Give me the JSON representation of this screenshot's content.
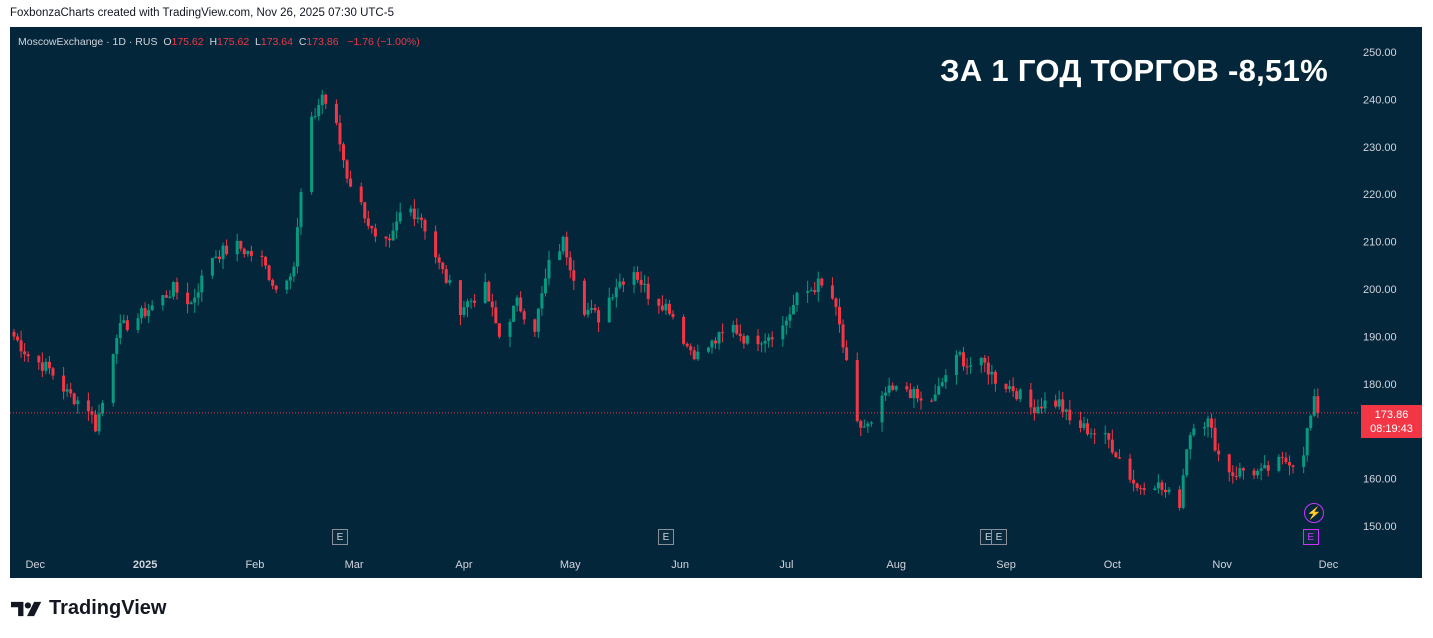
{
  "header": {
    "attribution": "FoxbonzaCharts created with TradingView.com, Nov 26, 2025 07:30 UTC-5"
  },
  "legend": {
    "symbol": "MoscowExchange · 1D · RUS",
    "open_label": "O",
    "open": "175.62",
    "high_label": "H",
    "high": "175.62",
    "low_label": "L",
    "low": "173.64",
    "close_label": "C",
    "close": "173.86",
    "change": "−1.76 (−1.00%)"
  },
  "headline": "ЗА 1 ГОД ТОРГОВ -8,51%",
  "price_badge": {
    "price": "173.86",
    "countdown": "08:19:43"
  },
  "earnings_marker": "E",
  "brand": {
    "name": "TradingView"
  },
  "colors": {
    "background": "#04263a",
    "up": "#089981",
    "down": "#f23645",
    "text": "#d1d4dc"
  },
  "icons": [
    "tradingview-logo-icon",
    "lightning-icon"
  ],
  "chart_data": {
    "type": "candlestick",
    "title": "",
    "xlabel": "",
    "ylabel": "",
    "ylim": [
      145,
      252
    ],
    "y_ticks": [
      "250.00",
      "240.00",
      "230.00",
      "220.00",
      "210.00",
      "200.00",
      "190.00",
      "180.00",
      "170.00",
      "160.00",
      "150.00"
    ],
    "x_ticks": [
      "Dec",
      "2025",
      "Feb",
      "Mar",
      "Apr",
      "May",
      "Jun",
      "Jul",
      "Aug",
      "Sep",
      "Oct",
      "Nov",
      "Dec"
    ],
    "grid": false,
    "last_price": 173.86,
    "close_series": [
      {
        "d": "2024-11-25",
        "c": 190
      },
      {
        "d": "2024-11-29",
        "c": 186
      },
      {
        "d": "2024-12-05",
        "c": 183
      },
      {
        "d": "2024-12-10",
        "c": 178
      },
      {
        "d": "2024-12-16",
        "c": 175
      },
      {
        "d": "2024-12-18",
        "c": 171
      },
      {
        "d": "2024-12-20",
        "c": 176
      },
      {
        "d": "2024-12-24",
        "c": 191
      },
      {
        "d": "2024-12-30",
        "c": 194
      },
      {
        "d": "2025-01-09",
        "c": 200
      },
      {
        "d": "2025-01-14",
        "c": 197
      },
      {
        "d": "2025-01-20",
        "c": 207
      },
      {
        "d": "2025-01-27",
        "c": 209
      },
      {
        "d": "2025-02-03",
        "c": 206
      },
      {
        "d": "2025-02-07",
        "c": 200
      },
      {
        "d": "2025-02-12",
        "c": 205
      },
      {
        "d": "2025-02-14",
        "c": 220
      },
      {
        "d": "2025-02-17",
        "c": 235
      },
      {
        "d": "2025-02-20",
        "c": 241
      },
      {
        "d": "2025-02-24",
        "c": 234
      },
      {
        "d": "2025-02-27",
        "c": 224
      },
      {
        "d": "2025-03-04",
        "c": 216
      },
      {
        "d": "2025-03-07",
        "c": 210
      },
      {
        "d": "2025-03-11",
        "c": 209
      },
      {
        "d": "2025-03-15",
        "c": 218
      },
      {
        "d": "2025-03-20",
        "c": 215
      },
      {
        "d": "2025-03-25",
        "c": 205
      },
      {
        "d": "2025-03-31",
        "c": 196
      },
      {
        "d": "2025-04-07",
        "c": 200
      },
      {
        "d": "2025-04-11",
        "c": 190
      },
      {
        "d": "2025-04-16",
        "c": 197
      },
      {
        "d": "2025-04-21",
        "c": 192
      },
      {
        "d": "2025-04-25",
        "c": 205
      },
      {
        "d": "2025-04-29",
        "c": 210
      },
      {
        "d": "2025-05-05",
        "c": 196
      },
      {
        "d": "2025-05-09",
        "c": 194
      },
      {
        "d": "2025-05-14",
        "c": 201
      },
      {
        "d": "2025-05-19",
        "c": 204
      },
      {
        "d": "2025-05-23",
        "c": 199
      },
      {
        "d": "2025-05-29",
        "c": 196
      },
      {
        "d": "2025-06-03",
        "c": 188
      },
      {
        "d": "2025-06-06",
        "c": 186
      },
      {
        "d": "2025-06-11",
        "c": 189
      },
      {
        "d": "2025-06-16",
        "c": 192
      },
      {
        "d": "2025-06-20",
        "c": 189
      },
      {
        "d": "2025-06-25",
        "c": 190
      },
      {
        "d": "2025-06-30",
        "c": 192
      },
      {
        "d": "2025-07-04",
        "c": 198
      },
      {
        "d": "2025-07-08",
        "c": 200
      },
      {
        "d": "2025-07-10",
        "c": 201
      },
      {
        "d": "2025-07-14",
        "c": 198
      },
      {
        "d": "2025-07-16",
        "c": 192
      },
      {
        "d": "2025-07-21",
        "c": 171
      },
      {
        "d": "2025-07-25",
        "c": 171
      },
      {
        "d": "2025-07-29",
        "c": 178
      },
      {
        "d": "2025-08-04",
        "c": 179
      },
      {
        "d": "2025-08-08",
        "c": 176
      },
      {
        "d": "2025-08-12",
        "c": 177
      },
      {
        "d": "2025-08-15",
        "c": 182
      },
      {
        "d": "2025-08-19",
        "c": 186
      },
      {
        "d": "2025-08-21",
        "c": 184
      },
      {
        "d": "2025-08-26",
        "c": 184
      },
      {
        "d": "2025-08-29",
        "c": 181
      },
      {
        "d": "2025-09-03",
        "c": 179
      },
      {
        "d": "2025-09-08",
        "c": 175
      },
      {
        "d": "2025-09-12",
        "c": 176
      },
      {
        "d": "2025-09-16",
        "c": 176
      },
      {
        "d": "2025-09-19",
        "c": 172
      },
      {
        "d": "2025-09-25",
        "c": 170
      },
      {
        "d": "2025-09-30",
        "c": 168
      },
      {
        "d": "2025-10-04",
        "c": 163
      },
      {
        "d": "2025-10-08",
        "c": 158
      },
      {
        "d": "2025-10-12",
        "c": 160
      },
      {
        "d": "2025-10-16",
        "c": 157
      },
      {
        "d": "2025-10-20",
        "c": 155
      },
      {
        "d": "2025-10-22",
        "c": 167
      },
      {
        "d": "2025-10-24",
        "c": 172
      },
      {
        "d": "2025-10-28",
        "c": 172
      },
      {
        "d": "2025-10-31",
        "c": 165
      },
      {
        "d": "2025-11-04",
        "c": 161
      },
      {
        "d": "2025-11-08",
        "c": 162
      },
      {
        "d": "2025-11-12",
        "c": 161
      },
      {
        "d": "2025-11-16",
        "c": 163
      },
      {
        "d": "2025-11-20",
        "c": 164
      },
      {
        "d": "2025-11-23",
        "c": 162
      },
      {
        "d": "2025-11-25",
        "c": 170
      },
      {
        "d": "2025-11-27",
        "c": 176
      },
      {
        "d": "2025-11-28",
        "c": 173.86
      }
    ],
    "earnings_events": [
      "2025-02-25",
      "2025-05-28",
      "2025-08-27",
      "2025-08-30",
      "2025-11-26"
    ],
    "countdown": "08:19:43"
  }
}
